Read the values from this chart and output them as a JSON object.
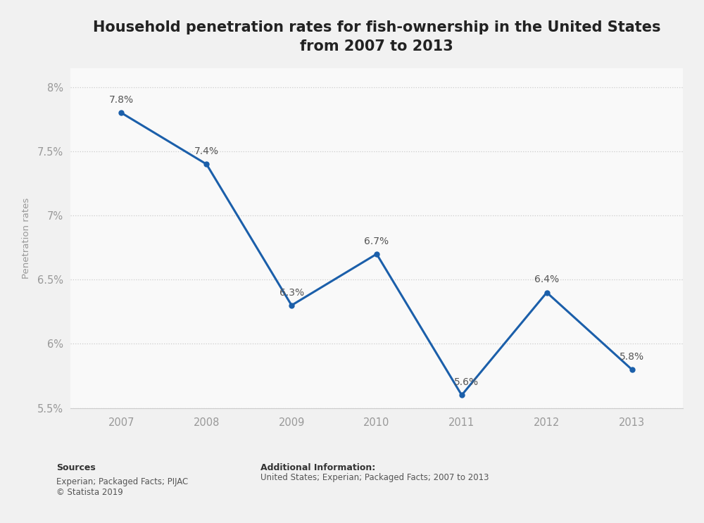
{
  "title": "Household penetration rates for fish-ownership in the United States\nfrom 2007 to 2013",
  "years": [
    2007,
    2008,
    2009,
    2010,
    2011,
    2012,
    2013
  ],
  "values": [
    7.8,
    7.4,
    6.3,
    6.7,
    5.6,
    6.4,
    5.8
  ],
  "labels": [
    "7.8%",
    "7.4%",
    "6.3%",
    "6.7%",
    "5.6%",
    "6.4%",
    "5.8%"
  ],
  "ylabel": "Penetration rates",
  "ylim": [
    5.5,
    8.15
  ],
  "yticks": [
    5.5,
    6.0,
    6.5,
    7.0,
    7.5,
    8.0
  ],
  "ytick_labels": [
    "5.5%",
    "6%",
    "6.5%",
    "7%",
    "7.5%",
    "8%"
  ],
  "line_color": "#1b5faa",
  "marker_color": "#1b5faa",
  "fig_bg_color": "#f1f1f1",
  "plot_bg_color": "#f9f9f9",
  "title_fontsize": 15,
  "label_fontsize": 10,
  "axis_fontsize": 10.5,
  "ylabel_fontsize": 9.5,
  "source_bold": "Sources",
  "source_text": "Experian; Packaged Facts; PIJAC\n© Statista 2019",
  "additional_bold": "Additional Information:",
  "additional_text": "United States; Experian; Packaged Facts; 2007 to 2013",
  "label_offsets_x": [
    0,
    0,
    0,
    0,
    5,
    0,
    0
  ],
  "label_offsets_y": [
    8,
    8,
    8,
    8,
    8,
    8,
    8
  ]
}
